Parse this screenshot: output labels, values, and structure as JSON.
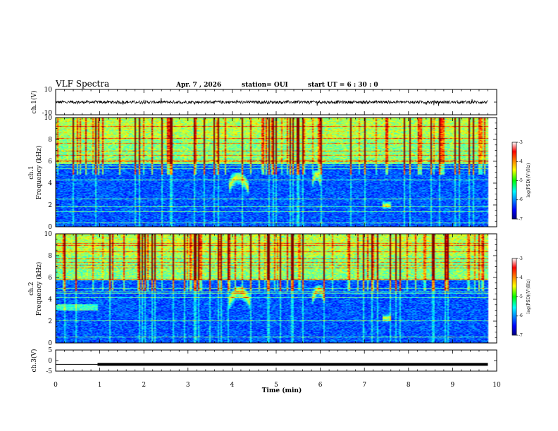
{
  "chart_data": {
    "type": "spectrogram",
    "title": "VLF Spectra",
    "date": "Apr. 7 , 2026",
    "station": "station= OUI",
    "start_ut": "start  UT =  6 : 30 : 0",
    "x_axis": {
      "label": "Time  (min)",
      "range": [
        0,
        10
      ],
      "ticks": [
        "0",
        "1",
        "2",
        "3",
        "4",
        "5",
        "6",
        "7",
        "8",
        "9",
        "10"
      ]
    },
    "panels": [
      {
        "id": "ch1-waveform",
        "type": "line",
        "ylabel": "ch.1(V)",
        "ylim": [
          -10,
          10
        ],
        "ytick_labels": [
          "10",
          "-10"
        ],
        "baseline_value": 0,
        "amplitude": 1.2,
        "data_end_min": 9.8
      },
      {
        "id": "ch1-spectrogram",
        "type": "heatmap",
        "ylabel": [
          "ch.1",
          "Frequency (kHz)"
        ],
        "ylim": [
          0,
          10
        ],
        "ytick_labels": [
          "0",
          "2",
          "4",
          "6",
          "8",
          "10"
        ],
        "data_end_min": 9.8,
        "noise_floor_khz": 5.8,
        "features": [
          {
            "kind": "chorus",
            "t_min": 3.9,
            "t_max": 4.35,
            "f_lo_khz": 3.0,
            "f_hi_khz": 5.0
          },
          {
            "kind": "chorus",
            "t_min": 5.8,
            "t_max": 6.0,
            "f_lo_khz": 3.5,
            "f_hi_khz": 5.2
          },
          {
            "kind": "blob",
            "t_min": 7.4,
            "t_max": 7.6,
            "f_lo_khz": 1.5,
            "f_hi_khz": 2.5
          }
        ],
        "colorbar": {
          "label": "log(PSD)(V²/Hz)",
          "range": [
            -7,
            -3
          ],
          "tick_labels": [
            "-3",
            "-4",
            "-5",
            "-6",
            "-7"
          ]
        }
      },
      {
        "id": "ch2-spectrogram",
        "type": "heatmap",
        "ylabel": [
          "ch.2",
          "Frequency (kHz)"
        ],
        "ylim": [
          0,
          10
        ],
        "ytick_labels": [
          "0",
          "2",
          "4",
          "6",
          "8",
          "10"
        ],
        "data_end_min": 9.8,
        "noise_floor_khz": 5.8,
        "features": [
          {
            "kind": "chorus",
            "t_min": 3.9,
            "t_max": 4.4,
            "f_lo_khz": 3.0,
            "f_hi_khz": 5.2
          },
          {
            "kind": "chorus",
            "t_min": 5.8,
            "t_max": 6.1,
            "f_lo_khz": 3.5,
            "f_hi_khz": 5.3
          },
          {
            "kind": "blob",
            "t_min": 7.4,
            "t_max": 7.6,
            "f_lo_khz": 1.8,
            "f_hi_khz": 2.8
          },
          {
            "kind": "band",
            "t_min": 0,
            "t_max": 0.95,
            "f_lo_khz": 3.0,
            "f_hi_khz": 3.6
          }
        ],
        "colorbar": {
          "label": "log(PSD)(V²/Hz)",
          "range": [
            -7,
            -3
          ],
          "tick_labels": [
            "-3",
            "-4",
            "-5",
            "-6",
            "-7"
          ]
        }
      },
      {
        "id": "ch3-waveform",
        "type": "line",
        "ylabel": "ch.3(V)",
        "ylim": [
          -5,
          5
        ],
        "ytick_labels": [
          "5",
          "0",
          "-5"
        ],
        "segments": [
          {
            "t_start": 0,
            "t_end": 0.95,
            "value": -1.8,
            "thickness": "thin"
          },
          {
            "t_start": 0.95,
            "t_end": 9.8,
            "value": -1.8,
            "thickness": "thick"
          }
        ]
      }
    ]
  }
}
